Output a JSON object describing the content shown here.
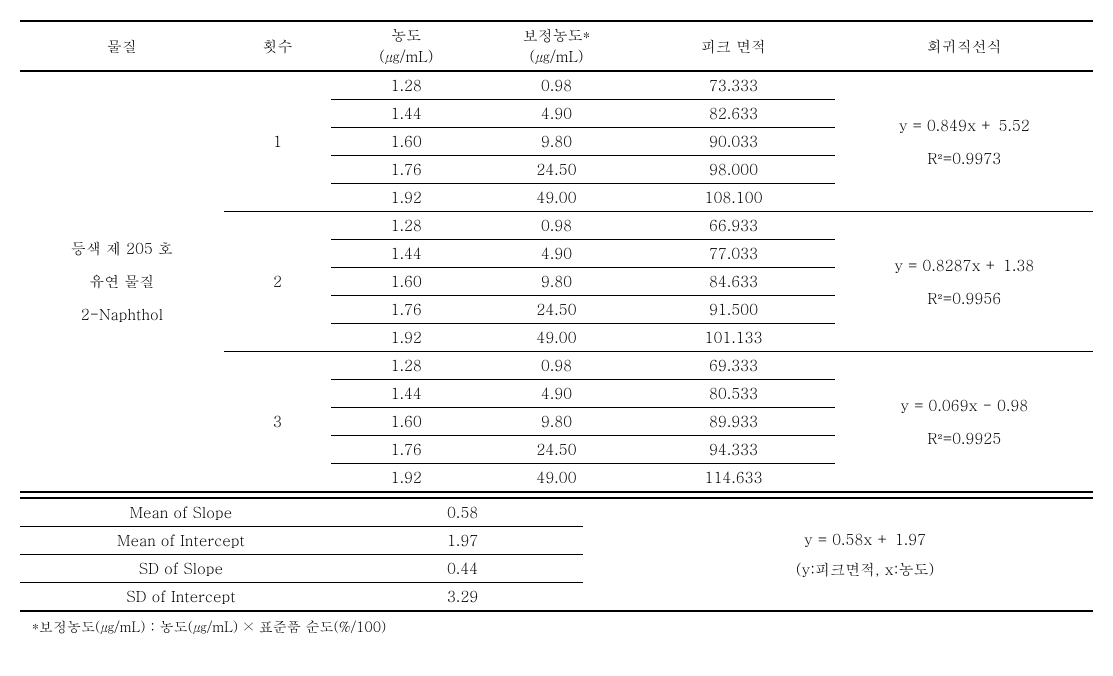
{
  "headers": {
    "material": "물질",
    "count": "횟수",
    "conc_top": "농도",
    "conc_unit": "(㎍/mL)",
    "corr_top": "보정농도*",
    "corr_unit": "(㎍/mL)",
    "peak": "피크 면적",
    "regression": "회귀직선식"
  },
  "material_line1": "등색 제 205 호",
  "material_line2": "유연 물질",
  "material_line3": "2-Naphthol",
  "groups": [
    {
      "trial": "1",
      "reg_eq": "y = 0.849x + 5.52",
      "reg_r2": "R²=0.9973",
      "rows": [
        {
          "conc": "1.28",
          "corr": "0.98",
          "peak": "73.333"
        },
        {
          "conc": "1.44",
          "corr": "4.90",
          "peak": "82.633"
        },
        {
          "conc": "1.60",
          "corr": "9.80",
          "peak": "90.033"
        },
        {
          "conc": "1.76",
          "corr": "24.50",
          "peak": "98.000"
        },
        {
          "conc": "1.92",
          "corr": "49.00",
          "peak": "108.100"
        }
      ]
    },
    {
      "trial": "2",
      "reg_eq": "y = 0.8287x + 1.38",
      "reg_r2": "R²=0.9956",
      "rows": [
        {
          "conc": "1.28",
          "corr": "0.98",
          "peak": "66.933"
        },
        {
          "conc": "1.44",
          "corr": "4.90",
          "peak": "77.033"
        },
        {
          "conc": "1.60",
          "corr": "9.80",
          "peak": "84.633"
        },
        {
          "conc": "1.76",
          "corr": "24.50",
          "peak": "91.500"
        },
        {
          "conc": "1.92",
          "corr": "49.00",
          "peak": "101.133"
        }
      ]
    },
    {
      "trial": "3",
      "reg_eq": "y = 0.069x - 0.98",
      "reg_r2": "R²=0.9925",
      "rows": [
        {
          "conc": "1.28",
          "corr": "0.98",
          "peak": "69.333"
        },
        {
          "conc": "1.44",
          "corr": "4.90",
          "peak": "80.533"
        },
        {
          "conc": "1.60",
          "corr": "9.80",
          "peak": "89.933"
        },
        {
          "conc": "1.76",
          "corr": "24.50",
          "peak": "94.333"
        },
        {
          "conc": "1.92",
          "corr": "49.00",
          "peak": "114.633"
        }
      ]
    }
  ],
  "summary": {
    "rows": [
      {
        "label": "Mean of Slope",
        "value": "0.58"
      },
      {
        "label": "Mean of Intercept",
        "value": "1.97"
      },
      {
        "label": "SD of Slope",
        "value": "0.44"
      },
      {
        "label": "SD of Intercept",
        "value": "3.29"
      }
    ],
    "right_eq": "y = 0.58x + 1.97",
    "right_desc": "(y:피크면적, x:농도)"
  },
  "footnote": "*보정농도(㎍/mL) : 농도(㎍/mL) × 표준품 순도(%/100)"
}
